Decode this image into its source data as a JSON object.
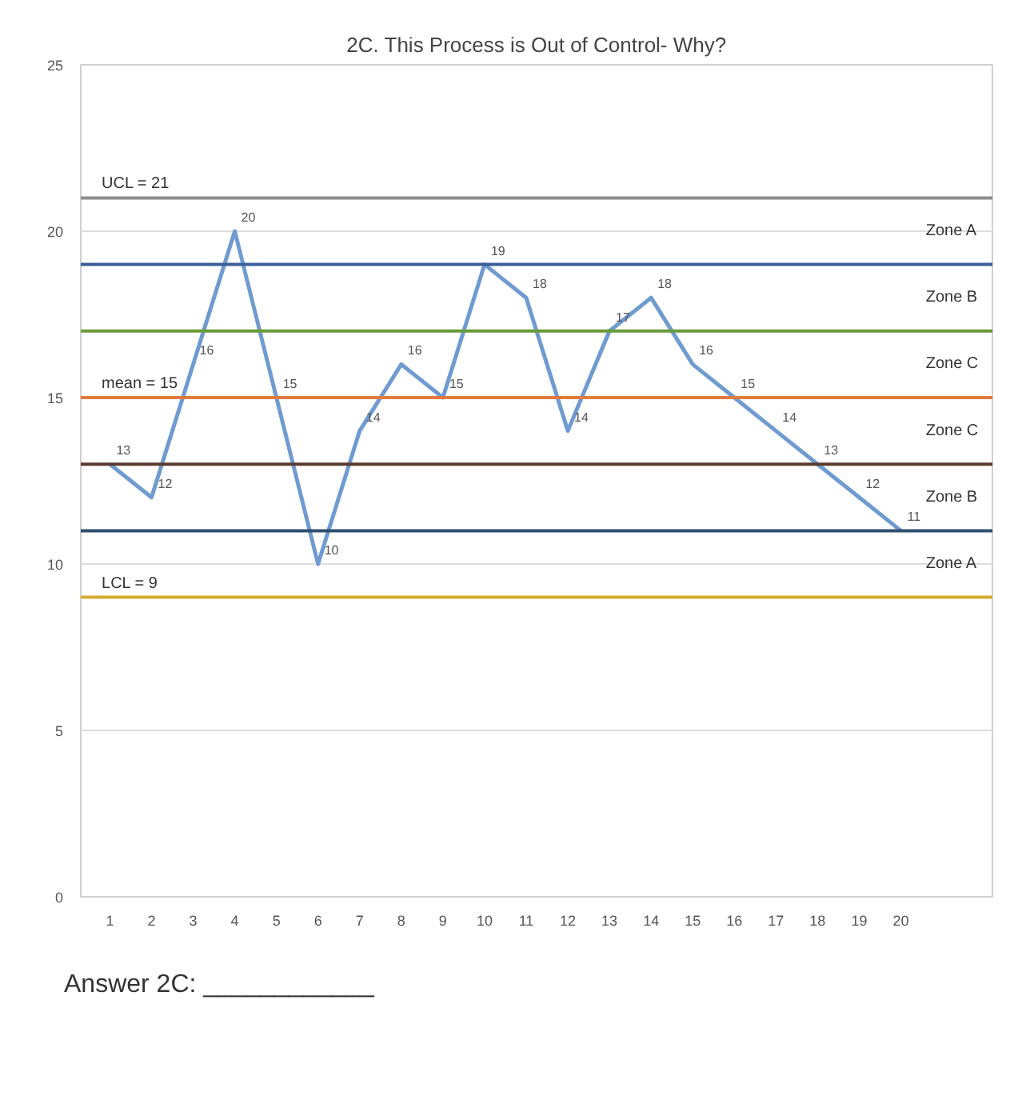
{
  "chart_data": {
    "type": "line",
    "title": "2C. This Process is Out of Control- Why?",
    "x": [
      1,
      2,
      3,
      4,
      5,
      6,
      7,
      8,
      9,
      10,
      11,
      12,
      13,
      14,
      15,
      16,
      17,
      18,
      19,
      20
    ],
    "xlim": [
      0.3,
      22.2
    ],
    "xticks": [
      1,
      2,
      3,
      4,
      5,
      6,
      7,
      8,
      9,
      10,
      11,
      12,
      13,
      14,
      15,
      16,
      17,
      18,
      19,
      20
    ],
    "series": [
      {
        "color": "#6f9bd1",
        "values": [
          13,
          12,
          16,
          20,
          15,
          10,
          14,
          16,
          15,
          19,
          18,
          14,
          17,
          18,
          16,
          15,
          14,
          13,
          12,
          11
        ]
      }
    ],
    "data_labels": true,
    "marker": "none",
    "line_style": "solid",
    "ylim": [
      0,
      25
    ],
    "yticks": [
      0,
      5,
      10,
      15,
      20,
      25
    ],
    "grid": "y",
    "ref_lines": [
      {
        "axis": "y",
        "value": 21,
        "label": "UCL = 21",
        "color": "#8c8c8c"
      },
      {
        "axis": "y",
        "value": 19,
        "label": null,
        "color": "#3a5f9a"
      },
      {
        "axis": "y",
        "value": 17,
        "label": null,
        "color": "#6a9a3a"
      },
      {
        "axis": "y",
        "value": 15,
        "label": "mean = 15",
        "color": "#e07a3f"
      },
      {
        "axis": "y",
        "value": 13,
        "label": null,
        "color": "#5a3a2e"
      },
      {
        "axis": "y",
        "value": 11,
        "label": null,
        "color": "#2f4f6f"
      },
      {
        "axis": "y",
        "value": 9,
        "label": "LCL = 9",
        "color": "#d4aa30"
      }
    ],
    "annotations": [
      "Zone A",
      "Zone B",
      "Zone C",
      "Zone C",
      "Zone B",
      "Zone A",
      "Answer 2C: ____________"
    ]
  }
}
